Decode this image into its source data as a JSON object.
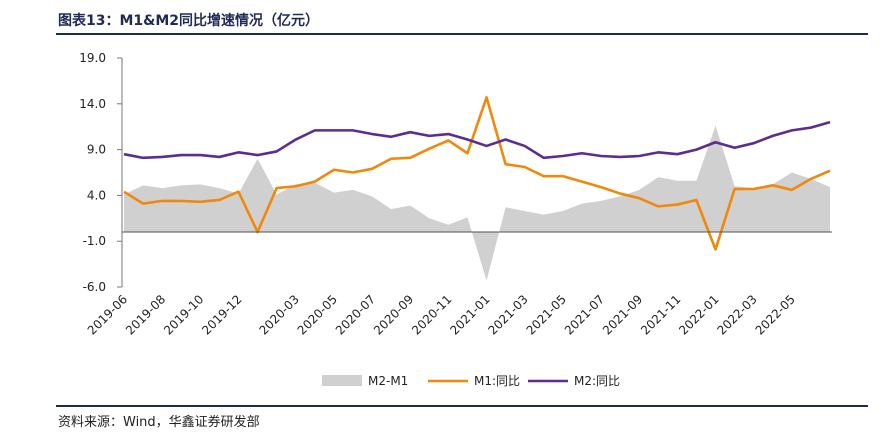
{
  "title": "图表13：M1&M2同比增速情况（亿元）",
  "source": "资料来源：Wind，华鑫证券研发部",
  "colors": {
    "m2m1": "#d0d0d0",
    "m1": "#f0880a",
    "m2": "#5b2d90",
    "rule": "#1f2a55"
  },
  "chart_data": {
    "type": "line",
    "title": "",
    "xlabel": "",
    "ylabel": "",
    "ylim": [
      -6.0,
      19.0
    ],
    "yticks": [
      "19.0",
      "14.0",
      "9.0",
      "4.0",
      "-1.0",
      "-6.0"
    ],
    "x": [
      "2019-06",
      "2019-07",
      "2019-08",
      "2019-09",
      "2019-10",
      "2019-11",
      "2019-12",
      "2020-01",
      "2020-02",
      "2020-03",
      "2020-04",
      "2020-05",
      "2020-06",
      "2020-07",
      "2020-08",
      "2020-09",
      "2020-10",
      "2020-11",
      "2020-12",
      "2021-01",
      "2021-02",
      "2021-03",
      "2021-04",
      "2021-05",
      "2021-06",
      "2021-07",
      "2021-08",
      "2021-09",
      "2021-10",
      "2021-11",
      "2021-12",
      "2022-01",
      "2022-02",
      "2022-03",
      "2022-04",
      "2022-05",
      "2022-06",
      "2022-07"
    ],
    "xtick_labels": [
      "2019-06",
      "2019-08",
      "2019-10",
      "2019-12",
      "2020-03",
      "2020-05",
      "2020-07",
      "2020-09",
      "2020-11",
      "2021-01",
      "2021-03",
      "2021-05",
      "2021-07",
      "2021-09",
      "2021-11",
      "2022-01",
      "2022-03",
      "2022-05"
    ],
    "legend_position": "bottom",
    "series": [
      {
        "name": "M2-M1",
        "style": "area",
        "values": [
          4.1,
          5.1,
          4.8,
          5.1,
          5.2,
          4.8,
          4.2,
          8.0,
          4.1,
          5.2,
          5.4,
          4.3,
          4.6,
          3.9,
          2.5,
          2.9,
          1.5,
          0.8,
          1.6,
          -5.3,
          2.7,
          2.3,
          1.9,
          2.3,
          3.1,
          3.4,
          3.9,
          4.6,
          6.0,
          5.6,
          5.6,
          11.6,
          5.0,
          4.8,
          5.2,
          6.5,
          5.8,
          4.9
        ]
      },
      {
        "name": "M1:同比",
        "style": "line",
        "values": [
          4.4,
          3.1,
          3.4,
          3.4,
          3.3,
          3.5,
          4.4,
          0.0,
          4.8,
          5.0,
          5.5,
          6.8,
          6.5,
          6.9,
          8.0,
          8.1,
          9.1,
          10.0,
          8.6,
          14.7,
          7.4,
          7.1,
          6.1,
          6.1,
          5.5,
          4.9,
          4.2,
          3.7,
          2.8,
          3.0,
          3.5,
          -1.9,
          4.7,
          4.7,
          5.1,
          4.6,
          5.8,
          6.7
        ]
      },
      {
        "name": "M2:同比",
        "style": "line",
        "values": [
          8.5,
          8.1,
          8.2,
          8.4,
          8.4,
          8.2,
          8.7,
          8.4,
          8.8,
          10.1,
          11.1,
          11.1,
          11.1,
          10.7,
          10.4,
          10.9,
          10.5,
          10.7,
          10.1,
          9.4,
          10.1,
          9.4,
          8.1,
          8.3,
          8.6,
          8.3,
          8.2,
          8.3,
          8.7,
          8.5,
          9.0,
          9.8,
          9.2,
          9.7,
          10.5,
          11.1,
          11.4,
          12.0
        ]
      }
    ]
  }
}
